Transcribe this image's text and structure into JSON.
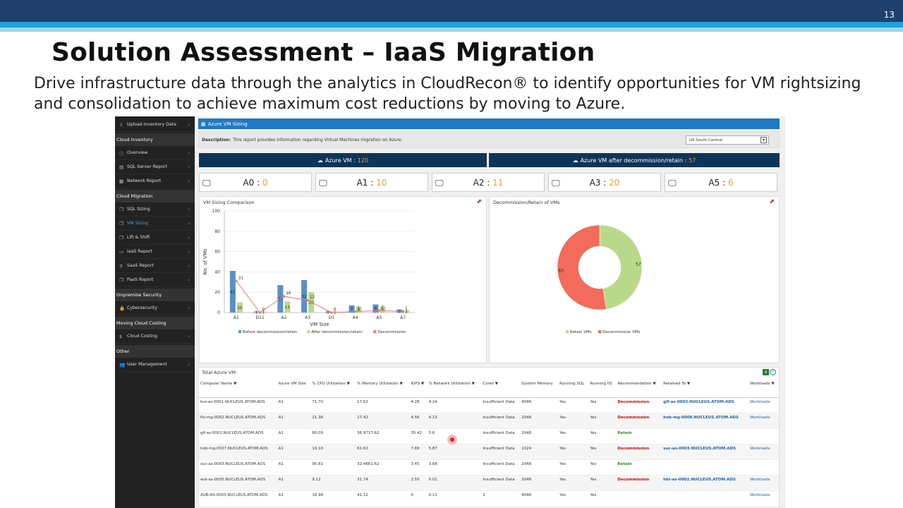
{
  "slide": {
    "number": "13",
    "title": "Solution Assessment – IaaS Migration",
    "subtitle": "Drive infrastructure data through the analytics in CloudRecon® to identify opportunities for VM rightsizing and consolidation to achieve maximum cost reductions by moving to Azure."
  },
  "sidebar": {
    "upload": "Upload Inventory Data",
    "sections": [
      {
        "title": "Cloud Inventory",
        "items": [
          {
            "label": "Overview",
            "icon": "info-icon"
          },
          {
            "label": "SQL Server Report",
            "icon": "database-icon"
          },
          {
            "label": "Network Report",
            "icon": "network-icon"
          }
        ]
      },
      {
        "title": "Cloud Migration",
        "items": [
          {
            "label": "SQL Sizing",
            "icon": "copy-icon"
          },
          {
            "label": "VM Sizing",
            "icon": "copy-icon"
          },
          {
            "label": "Lift & Shift",
            "icon": "copy-icon"
          },
          {
            "label": "IaaS Report",
            "icon": "monitor-icon"
          },
          {
            "label": "SaaS Report",
            "icon": "list-icon"
          },
          {
            "label": "PaaS Report",
            "icon": "copy-icon"
          }
        ]
      },
      {
        "title": "Onpremise Security",
        "items": [
          {
            "label": "Cybersecurity",
            "icon": "lock-icon"
          }
        ]
      },
      {
        "title": "Moving Cloud Costing",
        "items": [
          {
            "label": "Cloud Costing",
            "icon": "dollar-icon"
          }
        ]
      },
      {
        "title": "Other",
        "items": [
          {
            "label": "User Management",
            "icon": "users-icon"
          }
        ]
      }
    ]
  },
  "main": {
    "tab_title": "Azure VM Sizing",
    "description_label": "Description:",
    "description_text": "This report provides information regarding Virtual Machines migration on Azure.",
    "region": "US South Central",
    "banner_left_label": "Azure VM :",
    "banner_left_value": "120",
    "banner_right_label": "Azure VM after decommission/retain :",
    "banner_right_value": "57",
    "size_cards": [
      {
        "label": "A0 :",
        "value": "0"
      },
      {
        "label": "A1 :",
        "value": "10"
      },
      {
        "label": "A2 :",
        "value": "11"
      },
      {
        "label": "A3 :",
        "value": "20"
      },
      {
        "label": "A5 :",
        "value": "6"
      }
    ],
    "chart_panel_title": "VM Sizing Comparison",
    "donut_panel_title": "Decommission/Retain of VMs",
    "table_title": "Total Azure VM:"
  },
  "chart_data": [
    {
      "type": "bar",
      "title": "VM Sizing Comparison",
      "xlabel": "VM Size",
      "ylabel": "No. of VMs",
      "ylim": [
        0,
        100
      ],
      "yticks": [
        0,
        20,
        40,
        60,
        80,
        100
      ],
      "categories": [
        "A1",
        "D11",
        "A2",
        "A3",
        "D3",
        "A4",
        "A5",
        "A7"
      ],
      "series": [
        {
          "name": "Before decommission/retain",
          "type": "bar",
          "color": "#5b8fc7",
          "values": [
            41,
            1,
            27,
            32,
            1,
            7,
            8,
            3
          ]
        },
        {
          "name": "After decommission/retain",
          "type": "bar",
          "color": "#b9d98a",
          "values": [
            10,
            1,
            11,
            20,
            1,
            6,
            6,
            2
          ]
        },
        {
          "name": "Decommission",
          "type": "line",
          "color": "#ef7a7a",
          "values": [
            31,
            0,
            16,
            12,
            0,
            1,
            2,
            1
          ]
        }
      ],
      "legend": "bottom"
    },
    {
      "type": "pie",
      "title": "Decommission/Retain of VMs",
      "categories": [
        "Retain VMs",
        "Decommission VMs"
      ],
      "values": [
        57,
        63
      ],
      "colors": [
        "#b9d98a",
        "#f26b5b"
      ],
      "legend": "bottom"
    }
  ],
  "table": {
    "headers": [
      "Computer Name",
      "Azure VM Size",
      "% CPU Utilization",
      "% Memory Utilization",
      "IOPS",
      "% Network Utilization",
      "Cores",
      "System Memory",
      "Running SQL",
      "Running IIS",
      "Recommendation",
      "Retained To",
      "Workloads"
    ],
    "rows": [
      [
        "bur-as-0001.NUCLEUS.ATOM.ADS",
        "A1",
        "71.70",
        "17.62",
        "4.28",
        "4.24",
        "Insufficient Data",
        "4096",
        "Yes",
        "Yes",
        "Decommission",
        "glf-as-0003.NUCLEUS.ATOM.ADS",
        "Workloads"
      ],
      [
        "flo-mg-0002.NUCLEUS.ATOM.ADS",
        "A1",
        "21.36",
        "27.42",
        "4.56",
        "4.13",
        "Insufficient Data",
        "2048",
        "Yes",
        "Yes",
        "Decommission",
        "hob-mg-0008.NUCLEUS.ATOM.ADS",
        "Workloads"
      ],
      [
        "glf-as-0001.NUCLEUS.ATOM.ADS",
        "A1",
        "80.09",
        "36.9717.62",
        "35.42",
        "5.6",
        "Insufficient Data",
        "2048",
        "Yes",
        "Yes",
        "Retain",
        "",
        ""
      ],
      [
        "hob-mg-0027.NUCLEUS.ATOM.ADS",
        "A1",
        "19.10",
        "61.62",
        "7.69",
        "5.87",
        "Insufficient Data",
        "1024",
        "Yes",
        "Yes",
        "Decommission",
        "suc-as-0003.NUCLEUS.ATOM.ADS",
        "Workloads"
      ],
      [
        "suc-as-0003.NUCLEUS.ATOM.ADS",
        "A1",
        "95.61",
        "32.4661.62",
        "3.45",
        "3.68",
        "Insufficient Data",
        "2048",
        "Yes",
        "Yes",
        "Retain",
        "",
        ""
      ],
      [
        "wol-as-0005.NUCLEUS.ATOM.ADS",
        "A1",
        "9.12",
        "31.74",
        "2.55",
        "0.01",
        "Insufficient Data",
        "2048",
        "Yes",
        "Yes",
        "Decommission",
        "hkt-as-0002.NUCLEUS.ATOM.ADS",
        "Workloads"
      ],
      [
        "AUB-AS-0003.NUCLEUS.ATOM.ADS",
        "A1",
        "18.98",
        "41.12",
        "0",
        "0.11",
        "2",
        "4096",
        "Yes",
        "Yes",
        "",
        "",
        "Workloads"
      ]
    ]
  }
}
